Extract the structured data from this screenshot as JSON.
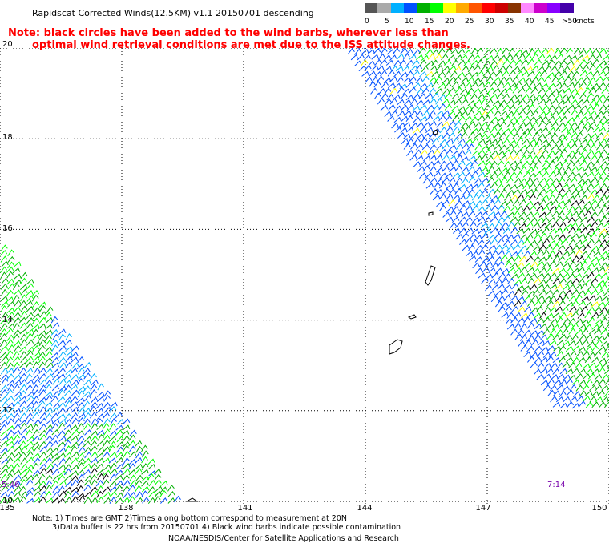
{
  "title": "Rapidscat Corrected Winds(12.5KM) v1.1 20150701 descending",
  "note": {
    "line1": "Note: black circles have been added to the wind barbs, wherever less than",
    "line2": "optimal wind retrieval conditions are met due to the ISS attitude changes."
  },
  "legend": {
    "unit": "knots",
    "labels": [
      "0",
      "5",
      "10",
      "15",
      "20",
      "25",
      "30",
      "35",
      "40",
      "45",
      ">50"
    ],
    "colors": [
      "#555555",
      "#aaaaaa",
      "#00b0ff",
      "#0050ff",
      "#00b000",
      "#00ff00",
      "#ffff00",
      "#ffaa00",
      "#ff5500",
      "#ff0000",
      "#cc0000",
      "#883300",
      "#ff88ff",
      "#cc00cc",
      "#8800ff",
      "#4400aa"
    ]
  },
  "lat_labels": [
    "20",
    "18",
    "16",
    "14",
    "12",
    "10"
  ],
  "lon_labels": [
    "135",
    "138",
    "141",
    "144",
    "147",
    "150"
  ],
  "time_labels": {
    "left": "5:46",
    "right": "7:14"
  },
  "footer": {
    "line1": "Note: 1) Times are GMT 2)Times along bottom correspond to measurement at 20N",
    "line2": "3)Data buffer is 22 hrs from 20150701 4) Black wind barbs indicate possible contamination",
    "credit": "NOAA/NESDIS/Center for Satellite Applications and Research"
  },
  "map": {
    "lat_range": [
      10,
      20
    ],
    "lon_range": [
      135,
      150
    ],
    "grid": true,
    "features": [
      "wind-barb-swath-northeast",
      "wind-barb-swath-southwest",
      "mariana-islands-outlines",
      "guam-outline"
    ]
  }
}
